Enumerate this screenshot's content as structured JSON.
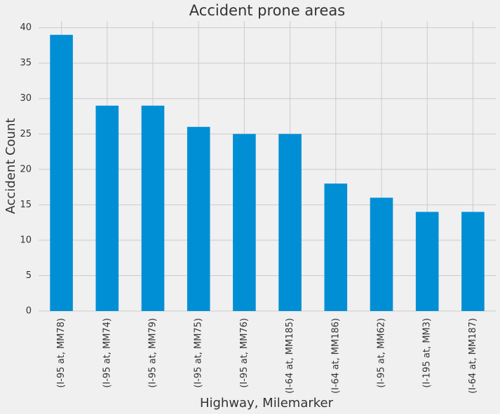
{
  "chart_data": {
    "type": "bar",
    "title": "Accident prone areas",
    "x_label": "Highway, Milemarker",
    "y_label": "Accident Count",
    "categories": [
      "(I-95 at, MM78)",
      "(I-95 at, MM74)",
      "(I-95 at, MM79)",
      "(I-95 at, MM75)",
      "(I-95 at, MM76)",
      "(I-64 at, MM185)",
      "(I-64 at, MM186)",
      "(I-95 at, MM62)",
      "(I-195 at, MM3)",
      "(I-64 at, MM187)"
    ],
    "values": [
      39,
      29,
      29,
      26,
      25,
      25,
      18,
      16,
      14,
      14
    ],
    "color": "#008fd5",
    "ylim": [
      0,
      40.95
    ],
    "yticks": [
      0,
      5,
      10,
      15,
      20,
      25,
      30,
      35,
      40
    ],
    "grid": true
  }
}
